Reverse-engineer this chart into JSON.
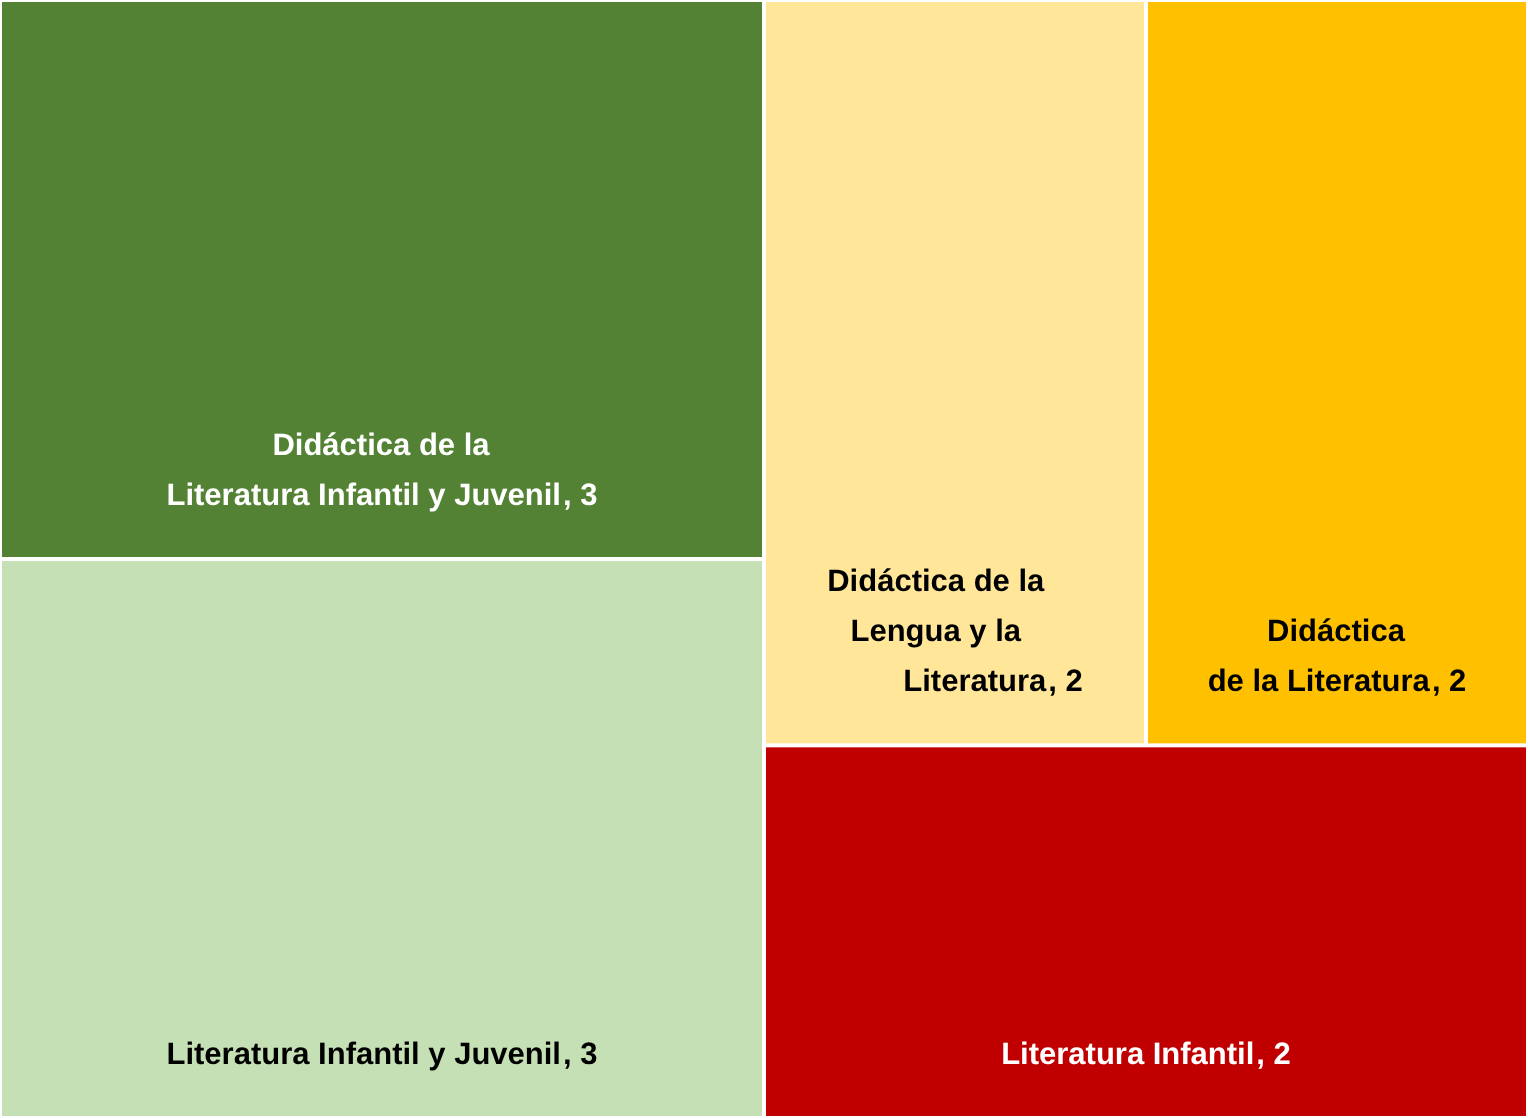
{
  "chart_data": {
    "type": "other",
    "categories": [
      "Didáctica de la Literatura Infantil y Juvenil",
      "Literatura Infantil y Juvenil",
      "Didáctica de la Lengua y la Literatura",
      "Didáctica de la Literatura",
      "Literatura Infantil"
    ],
    "values": [
      3,
      3,
      2,
      2,
      2
    ],
    "value_labels": [
      ", 3",
      ", 3",
      ", 2",
      ", 2",
      ", 2"
    ],
    "colors": [
      "#548235",
      "#c5e0b4",
      "#ffe699",
      "#ffc000",
      "#c00000"
    ]
  }
}
